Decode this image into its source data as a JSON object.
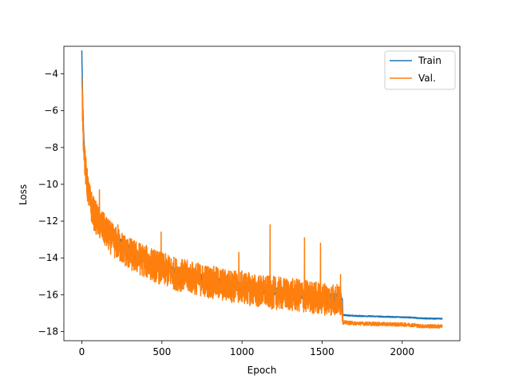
{
  "chart_data": {
    "type": "line",
    "title": "",
    "xlabel": "Epoch",
    "ylabel": "Loss",
    "xlim": [
      -112,
      2360
    ],
    "ylim": [
      -18.5,
      -2.5
    ],
    "xticks": [
      0,
      500,
      1000,
      1500,
      2000
    ],
    "yticks": [
      -18,
      -16,
      -14,
      -12,
      -10,
      -8,
      -6,
      -4
    ],
    "grid": false,
    "legend_position": "top-right",
    "series": [
      {
        "name": "Train",
        "color": "#1f77b4",
        "x": [
          0,
          5,
          10,
          20,
          30,
          50,
          75,
          100,
          150,
          200,
          300,
          400,
          500,
          600,
          700,
          800,
          900,
          1000,
          1100,
          1200,
          1300,
          1400,
          1500,
          1600,
          1625,
          1630,
          1700,
          1800,
          1900,
          2000,
          2080,
          2100,
          2200,
          2250
        ],
        "y": [
          -2.8,
          -5.5,
          -7.0,
          -8.6,
          -9.5,
          -10.6,
          -11.4,
          -11.8,
          -12.4,
          -12.9,
          -13.6,
          -14.1,
          -14.5,
          -14.8,
          -15.0,
          -15.2,
          -15.4,
          -15.5,
          -15.7,
          -15.8,
          -15.9,
          -16.0,
          -16.1,
          -16.2,
          -16.3,
          -17.1,
          -17.15,
          -17.17,
          -17.2,
          -17.22,
          -17.25,
          -17.28,
          -17.3,
          -17.3
        ]
      },
      {
        "name": "Val.",
        "color": "#ff7f0e",
        "x": [
          0,
          5,
          10,
          20,
          30,
          50,
          75,
          100,
          150,
          200,
          300,
          400,
          500,
          600,
          700,
          800,
          900,
          1000,
          1100,
          1200,
          1300,
          1400,
          1500,
          1600,
          1625,
          1630,
          1700,
          1800,
          1900,
          2000,
          2080,
          2100,
          2200,
          2250
        ],
        "y": [
          -4.7,
          -6.0,
          -7.3,
          -8.9,
          -9.8,
          -10.9,
          -11.6,
          -12.0,
          -12.6,
          -13.1,
          -13.8,
          -14.2,
          -14.6,
          -14.9,
          -15.1,
          -15.3,
          -15.5,
          -15.6,
          -15.8,
          -15.9,
          -16.0,
          -16.1,
          -16.2,
          -16.3,
          -16.3,
          -17.5,
          -17.55,
          -17.58,
          -17.6,
          -17.62,
          -17.65,
          -17.7,
          -17.72,
          -17.72
        ]
      }
    ],
    "spikes": [
      {
        "x": 8,
        "y": -6.5,
        "series": 1
      },
      {
        "x": 110,
        "y": -10.3,
        "series": 1
      },
      {
        "x": 225,
        "y": -12.2,
        "series": 1
      },
      {
        "x": 495,
        "y": -12.6,
        "series": 1
      },
      {
        "x": 980,
        "y": -13.7,
        "series": 1
      },
      {
        "x": 1175,
        "y": -12.2,
        "series": 1
      },
      {
        "x": 1390,
        "y": -12.9,
        "series": 1
      },
      {
        "x": 1490,
        "y": -13.2,
        "series": 1
      },
      {
        "x": 1615,
        "y": -14.9,
        "series": 1
      }
    ]
  }
}
